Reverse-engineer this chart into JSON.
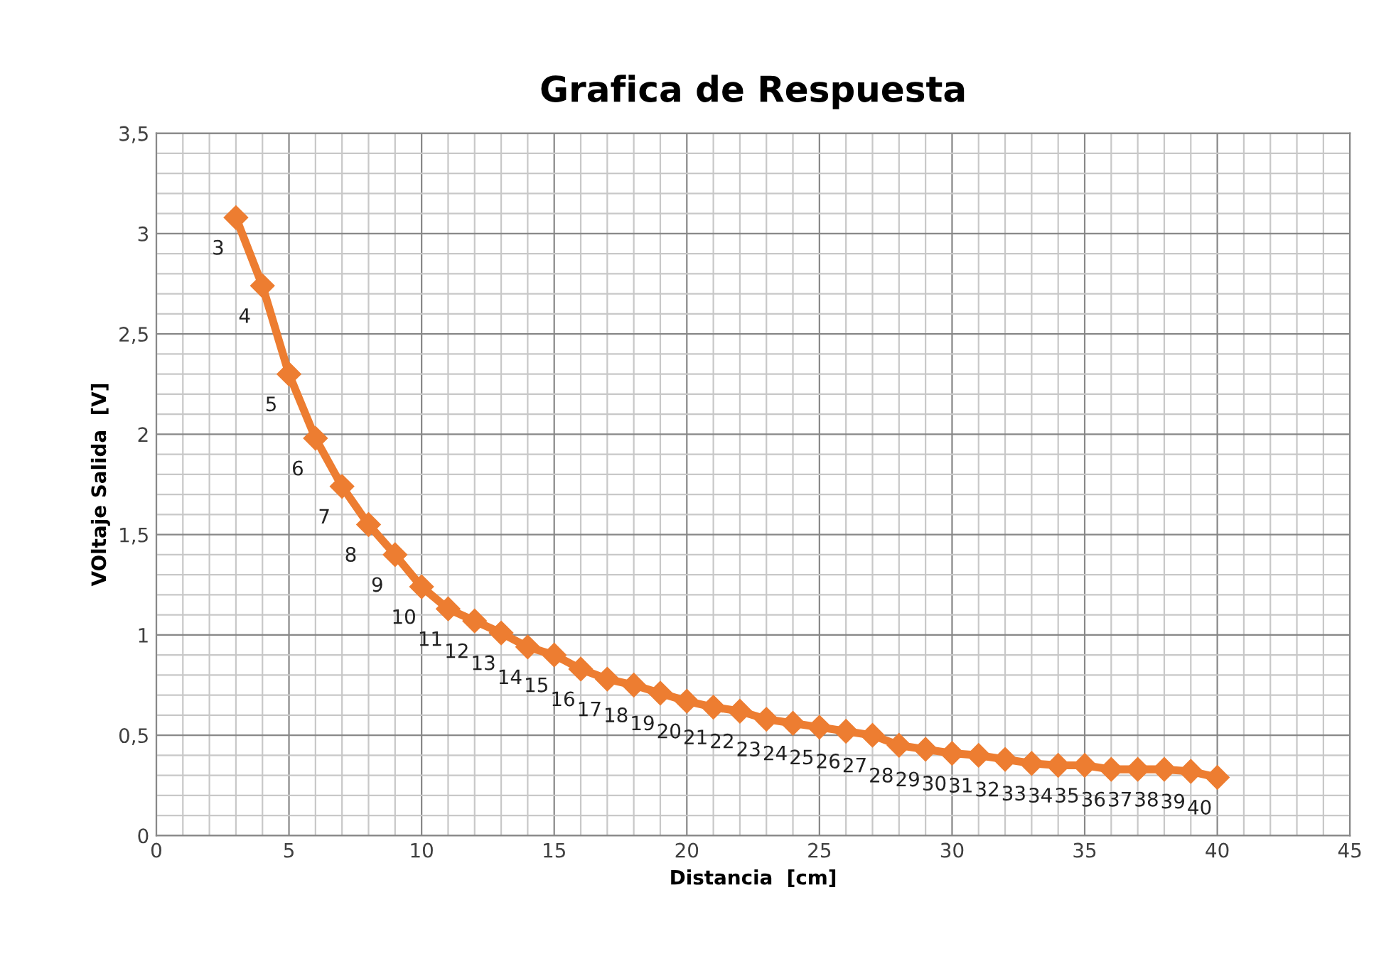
{
  "chart_data": {
    "type": "line",
    "title": "Grafica de Respuesta",
    "xlabel": "Distancia  [cm]",
    "ylabel": "VOltaje Salida  [V]",
    "x": [
      3,
      4,
      5,
      6,
      7,
      8,
      9,
      10,
      11,
      12,
      13,
      14,
      15,
      16,
      17,
      18,
      19,
      20,
      21,
      22,
      23,
      24,
      25,
      26,
      27,
      28,
      29,
      30,
      31,
      32,
      33,
      34,
      35,
      36,
      37,
      38,
      39,
      40
    ],
    "series": [
      {
        "color": "#ed7d31",
        "values": [
          3.08,
          2.74,
          2.3,
          1.98,
          1.74,
          1.55,
          1.4,
          1.24,
          1.13,
          1.07,
          1.01,
          0.94,
          0.9,
          0.83,
          0.78,
          0.75,
          0.71,
          0.67,
          0.64,
          0.62,
          0.58,
          0.56,
          0.54,
          0.52,
          0.5,
          0.45,
          0.43,
          0.41,
          0.4,
          0.38,
          0.36,
          0.35,
          0.35,
          0.33,
          0.33,
          0.33,
          0.32,
          0.29
        ]
      }
    ],
    "annotations": [
      {
        "text": "3",
        "x": 3,
        "y": 3.08
      },
      {
        "text": "4",
        "x": 4,
        "y": 2.74
      },
      {
        "text": "5",
        "x": 5,
        "y": 2.3
      },
      {
        "text": "6",
        "x": 6,
        "y": 1.98
      },
      {
        "text": "7",
        "x": 7,
        "y": 1.74
      },
      {
        "text": "8",
        "x": 8,
        "y": 1.55
      },
      {
        "text": "9",
        "x": 9,
        "y": 1.4
      },
      {
        "text": "10",
        "x": 10,
        "y": 1.24
      },
      {
        "text": "11",
        "x": 11,
        "y": 1.13
      },
      {
        "text": "12",
        "x": 12,
        "y": 1.07
      },
      {
        "text": "13",
        "x": 13,
        "y": 1.01
      },
      {
        "text": "14",
        "x": 14,
        "y": 0.94
      },
      {
        "text": "15",
        "x": 15,
        "y": 0.9
      },
      {
        "text": "16",
        "x": 16,
        "y": 0.83
      },
      {
        "text": "17",
        "x": 17,
        "y": 0.78
      },
      {
        "text": "18",
        "x": 18,
        "y": 0.75
      },
      {
        "text": "19",
        "x": 19,
        "y": 0.71
      },
      {
        "text": "20",
        "x": 20,
        "y": 0.67
      },
      {
        "text": "21",
        "x": 21,
        "y": 0.64
      },
      {
        "text": "22",
        "x": 22,
        "y": 0.62
      },
      {
        "text": "23",
        "x": 23,
        "y": 0.58
      },
      {
        "text": "24",
        "x": 24,
        "y": 0.56
      },
      {
        "text": "25",
        "x": 25,
        "y": 0.54
      },
      {
        "text": "26",
        "x": 26,
        "y": 0.52
      },
      {
        "text": "27",
        "x": 27,
        "y": 0.5
      },
      {
        "text": "28",
        "x": 28,
        "y": 0.45
      },
      {
        "text": "29",
        "x": 29,
        "y": 0.43
      },
      {
        "text": "30",
        "x": 30,
        "y": 0.41
      },
      {
        "text": "31",
        "x": 31,
        "y": 0.4
      },
      {
        "text": "32",
        "x": 32,
        "y": 0.38
      },
      {
        "text": "33",
        "x": 33,
        "y": 0.36
      },
      {
        "text": "34",
        "x": 34,
        "y": 0.35
      },
      {
        "text": "35",
        "x": 35,
        "y": 0.35
      },
      {
        "text": "36",
        "x": 36,
        "y": 0.33
      },
      {
        "text": "37",
        "x": 37,
        "y": 0.33
      },
      {
        "text": "38",
        "x": 38,
        "y": 0.33
      },
      {
        "text": "39",
        "x": 39,
        "y": 0.32
      },
      {
        "text": "40",
        "x": 40,
        "y": 0.29
      }
    ],
    "xlim": [
      0,
      45
    ],
    "xticks": [
      0,
      5,
      10,
      15,
      20,
      25,
      30,
      35,
      40,
      45
    ],
    "ylim": [
      0,
      3.5
    ],
    "yticks": [
      0,
      {
        "value": 0.5,
        "label": "0,5"
      },
      1,
      {
        "value": 1.5,
        "label": "1,5"
      },
      2,
      {
        "value": 2.5,
        "label": "2,5"
      },
      3,
      {
        "value": 3.5,
        "label": "3,5"
      }
    ],
    "grid": true,
    "marker": "diamond",
    "line_style": "solid"
  }
}
